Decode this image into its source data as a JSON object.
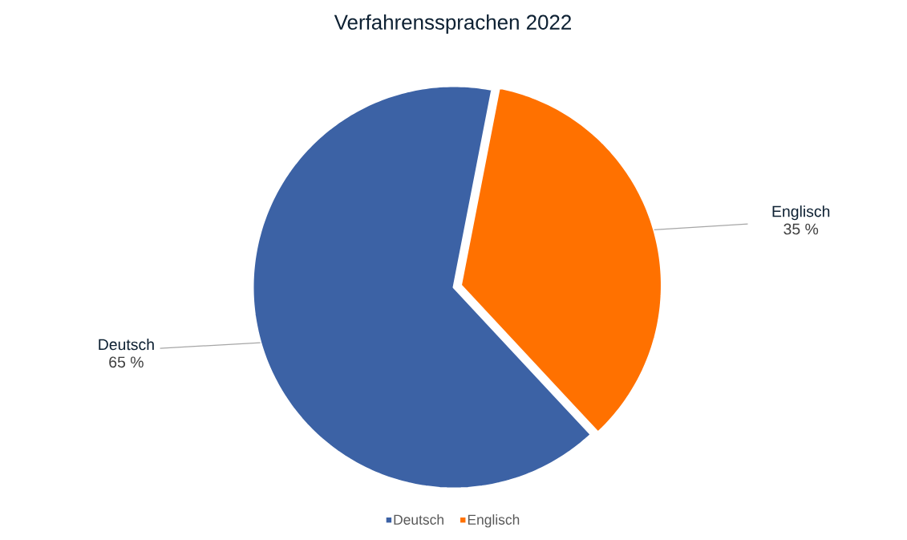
{
  "chart_data": {
    "type": "pie",
    "title": "Verfahrenssprachen 2022",
    "categories": [
      "Deutsch",
      "Englisch"
    ],
    "values": [
      65,
      35
    ],
    "colors": [
      "#3c62a5",
      "#ff7100"
    ],
    "value_labels": [
      "65 %",
      "35 %"
    ],
    "legend": "bottom"
  }
}
